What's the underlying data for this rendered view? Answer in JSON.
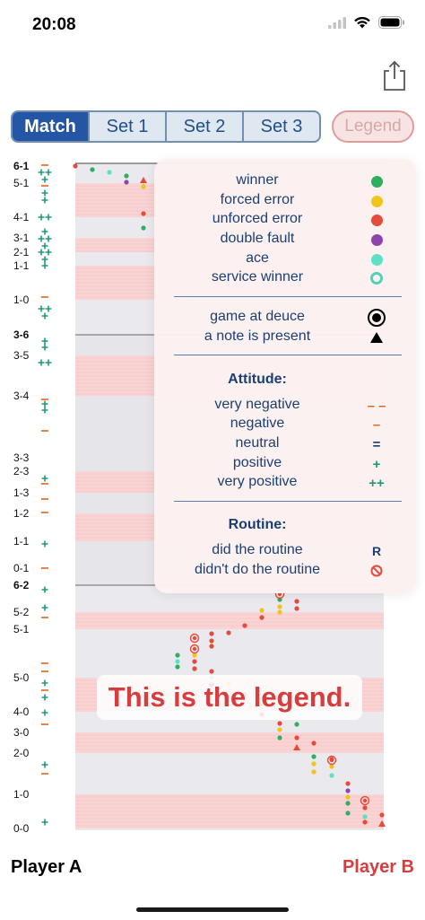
{
  "status": {
    "time": "20:08"
  },
  "toolbar": {
    "share_icon": "share-icon"
  },
  "tabs": [
    {
      "label": "Match",
      "active": true
    },
    {
      "label": "Set 1",
      "active": false
    },
    {
      "label": "Set 2",
      "active": false
    },
    {
      "label": "Set 3",
      "active": false
    }
  ],
  "legend_button": {
    "label": "Legend"
  },
  "score_labels": [
    {
      "text": "6-1",
      "bold": true
    },
    {
      "text": "5-1",
      "bold": false
    },
    {
      "text": "4-1",
      "bold": false
    },
    {
      "text": "3-1",
      "bold": false
    },
    {
      "text": "2-1",
      "bold": false
    },
    {
      "text": "1-1",
      "bold": false
    },
    {
      "text": "1-0",
      "bold": false
    },
    {
      "text": "3-6",
      "bold": true
    },
    {
      "text": "3-5",
      "bold": false
    },
    {
      "text": "3-4",
      "bold": false
    },
    {
      "text": "3-3",
      "bold": false
    },
    {
      "text": "2-3",
      "bold": false
    },
    {
      "text": "1-3",
      "bold": false
    },
    {
      "text": "1-2",
      "bold": false
    },
    {
      "text": "1-1",
      "bold": false
    },
    {
      "text": "0-1",
      "bold": false
    },
    {
      "text": "6-2",
      "bold": true
    },
    {
      "text": "5-2",
      "bold": false
    },
    {
      "text": "5-1",
      "bold": false
    },
    {
      "text": "5-0",
      "bold": false
    },
    {
      "text": "4-0",
      "bold": false
    },
    {
      "text": "3-0",
      "bold": false
    },
    {
      "text": "2-0",
      "bold": false
    },
    {
      "text": "1-0",
      "bold": false
    },
    {
      "text": "0-0",
      "bold": false
    }
  ],
  "legend": {
    "outcomes": [
      {
        "label": "winner",
        "color": "#2fae5e",
        "symbol": "dot"
      },
      {
        "label": "forced error",
        "color": "#f0c419",
        "symbol": "dot"
      },
      {
        "label": "unforced error",
        "color": "#e54b3b",
        "symbol": "dot"
      },
      {
        "label": "double fault",
        "color": "#8e44ad",
        "symbol": "dot"
      },
      {
        "label": "ace",
        "color": "#5ee0c4",
        "symbol": "dot"
      },
      {
        "label": "service winner",
        "color": "#51d2b8",
        "symbol": "ring"
      }
    ],
    "markers": [
      {
        "label": "game at deuce",
        "symbol": "target"
      },
      {
        "label": "a note is present",
        "symbol": "triangle"
      }
    ],
    "attitude_title": "Attitude:",
    "attitude": [
      {
        "label": "very negative",
        "sym": "– –",
        "color": "#e0661f"
      },
      {
        "label": "negative",
        "sym": "–",
        "color": "#e0661f"
      },
      {
        "label": "neutral",
        "sym": "=",
        "color": "#1c3f72"
      },
      {
        "label": "positive",
        "sym": "+",
        "color": "#1f9a7a"
      },
      {
        "label": "very positive",
        "sym": "++",
        "color": "#1f9a7a"
      }
    ],
    "routine_title": "Routine:",
    "routine": [
      {
        "label": "did the routine",
        "sym": "R",
        "color": "#1c3f72"
      },
      {
        "label": "didn't do the routine",
        "sym": "prohibited-icon",
        "color": "#e54b3b"
      }
    ]
  },
  "callout": {
    "text": "This is the legend."
  },
  "players": {
    "a": "Player A",
    "b": "Player B"
  }
}
